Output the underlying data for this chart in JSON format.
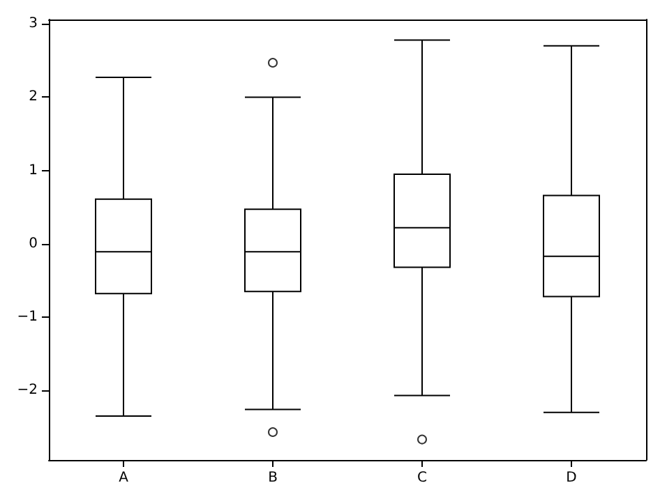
{
  "chart_data": {
    "type": "box",
    "categories": [
      "A",
      "B",
      "C",
      "D"
    ],
    "boxes": [
      {
        "low": -2.35,
        "q1": -0.68,
        "median": -0.11,
        "q3": 0.61,
        "high": 2.27
      },
      {
        "low": -2.26,
        "q1": -0.65,
        "median": -0.11,
        "q3": 0.47,
        "high": 2.0,
        "outliers": [
          2.47,
          -2.57
        ]
      },
      {
        "low": -2.07,
        "q1": -0.32,
        "median": 0.22,
        "q3": 0.95,
        "high": 2.78,
        "outliers": [
          -2.67
        ]
      },
      {
        "low": -2.3,
        "q1": -0.72,
        "median": -0.17,
        "q3": 0.66,
        "high": 2.7
      }
    ],
    "color": "#000000",
    "ylim": [
      -2.95,
      3.06
    ],
    "yticks": [
      {
        "value": -2,
        "label": "−2"
      },
      {
        "value": -1,
        "label": "−1"
      },
      0,
      1,
      2,
      3
    ],
    "grid": false
  }
}
